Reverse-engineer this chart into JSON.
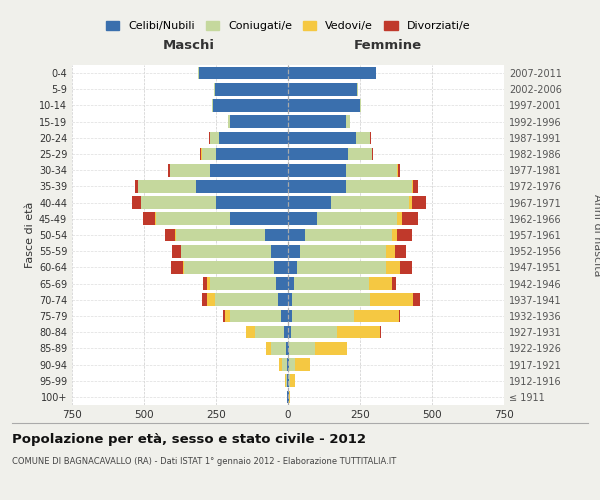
{
  "age_groups": [
    "100+",
    "95-99",
    "90-94",
    "85-89",
    "80-84",
    "75-79",
    "70-74",
    "65-69",
    "60-64",
    "55-59",
    "50-54",
    "45-49",
    "40-44",
    "35-39",
    "30-34",
    "25-29",
    "20-24",
    "15-19",
    "10-14",
    "5-9",
    "0-4"
  ],
  "birth_years": [
    "≤ 1911",
    "1912-1916",
    "1917-1921",
    "1922-1926",
    "1927-1931",
    "1932-1936",
    "1937-1941",
    "1942-1946",
    "1947-1951",
    "1952-1956",
    "1957-1961",
    "1962-1966",
    "1967-1971",
    "1972-1976",
    "1977-1981",
    "1982-1986",
    "1987-1991",
    "1992-1996",
    "1997-2001",
    "2002-2006",
    "2007-2011"
  ],
  "male": {
    "celibi": [
      2,
      3,
      5,
      8,
      15,
      25,
      35,
      40,
      50,
      60,
      80,
      200,
      250,
      320,
      270,
      250,
      240,
      200,
      260,
      255,
      310
    ],
    "coniugati": [
      2,
      5,
      15,
      50,
      100,
      175,
      220,
      230,
      310,
      310,
      310,
      260,
      260,
      200,
      140,
      50,
      30,
      10,
      5,
      3,
      2
    ],
    "vedovi": [
      1,
      3,
      10,
      20,
      30,
      20,
      25,
      10,
      5,
      3,
      2,
      3,
      2,
      1,
      1,
      1,
      1,
      0,
      0,
      0,
      0
    ],
    "divorziati": [
      0,
      0,
      0,
      0,
      2,
      5,
      20,
      15,
      40,
      30,
      35,
      40,
      30,
      10,
      5,
      3,
      2,
      0,
      0,
      0,
      0
    ]
  },
  "female": {
    "celibi": [
      2,
      3,
      5,
      5,
      10,
      15,
      15,
      20,
      30,
      40,
      60,
      100,
      150,
      200,
      200,
      210,
      235,
      200,
      250,
      240,
      305
    ],
    "coniugati": [
      1,
      5,
      20,
      90,
      160,
      215,
      270,
      260,
      310,
      300,
      300,
      280,
      270,
      230,
      180,
      80,
      50,
      15,
      5,
      3,
      2
    ],
    "vedovi": [
      3,
      15,
      50,
      110,
      150,
      155,
      150,
      80,
      50,
      30,
      20,
      15,
      10,
      5,
      3,
      2,
      1,
      0,
      0,
      0,
      0
    ],
    "divorziati": [
      0,
      0,
      0,
      0,
      2,
      5,
      25,
      15,
      40,
      40,
      50,
      55,
      50,
      15,
      5,
      3,
      2,
      0,
      0,
      0,
      0
    ]
  },
  "colors": {
    "celibi": "#3a6fad",
    "coniugati": "#c5d89d",
    "vedovi": "#f5c842",
    "divorziati": "#c0392b"
  },
  "xlim": 750,
  "title": "Popolazione per età, sesso e stato civile - 2012",
  "subtitle": "COMUNE DI BAGNACAVALLO (RA) - Dati ISTAT 1° gennaio 2012 - Elaborazione TUTTITALIA.IT",
  "xlabel_left": "Maschi",
  "xlabel_right": "Femmine",
  "ylabel_left": "Fasce di età",
  "ylabel_right": "Anni di nascita",
  "legend_labels": [
    "Celibi/Nubili",
    "Coniugati/e",
    "Vedovi/e",
    "Divorziati/e"
  ],
  "bg_color": "#f0f0eb",
  "plot_bg": "#ffffff"
}
